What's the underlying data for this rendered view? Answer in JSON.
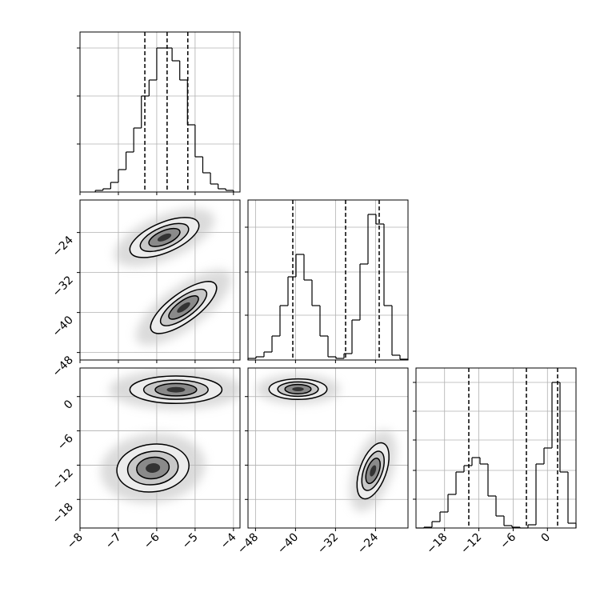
{
  "chart_data": {
    "type": "corner",
    "grid": true,
    "params": [
      {
        "lim": [
          -8,
          -3.83
        ],
        "ticks": [
          {
            "value": -8,
            "label": "−8"
          },
          {
            "value": -7,
            "label": "−7"
          },
          {
            "value": -6,
            "label": "−6"
          },
          {
            "value": -5,
            "label": "−5"
          },
          {
            "value": -4,
            "label": "−4"
          }
        ],
        "hist": {
          "bins": [
            -7.6,
            -7.4,
            -7.2,
            -7.0,
            -6.8,
            -6.6,
            -6.4,
            -6.2,
            -6.0,
            -5.8,
            -5.6,
            -5.4,
            -5.2,
            -5.0,
            -4.8,
            -4.6,
            -4.4,
            -4.2,
            -4.0
          ],
          "counts": [
            0.01,
            0.02,
            0.06,
            0.14,
            0.25,
            0.4,
            0.6,
            0.7,
            0.9,
            0.9,
            0.82,
            0.7,
            0.42,
            0.22,
            0.12,
            0.05,
            0.02,
            0.01
          ],
          "ylim": [
            0,
            1
          ],
          "yticks": [
            0.3,
            0.6,
            0.9
          ],
          "quantiles": [
            -6.31,
            -5.73,
            -5.19
          ]
        }
      },
      {
        "lim": [
          -49.5,
          -17.5
        ],
        "ticks": [
          {
            "value": -48,
            "label": "−48"
          },
          {
            "value": -40,
            "label": "−40"
          },
          {
            "value": -32,
            "label": "−32"
          },
          {
            "value": -24,
            "label": "−24"
          }
        ],
        "hist": {
          "bins": [
            -49.5,
            -47.9,
            -46.3,
            -44.7,
            -43.1,
            -41.5,
            -39.9,
            -38.3,
            -36.7,
            -35.1,
            -33.5,
            -31.9,
            -30.3,
            -28.7,
            -27.1,
            -25.5,
            -23.9,
            -22.3,
            -20.7,
            -19.1,
            -17.5
          ],
          "counts": [
            0.01,
            0.02,
            0.05,
            0.15,
            0.34,
            0.52,
            0.66,
            0.5,
            0.34,
            0.15,
            0.02,
            0.01,
            0.04,
            0.25,
            0.6,
            0.91,
            0.85,
            0.34,
            0.03,
            0.005
          ],
          "ylim": [
            0,
            1
          ],
          "yticks": [
            0.28,
            0.55,
            0.83
          ],
          "quantiles": [
            -40.54,
            -29.98,
            -23.26
          ]
        }
      },
      {
        "lim": [
          -23,
          5
        ],
        "ticks": [
          {
            "value": -18,
            "label": "−18"
          },
          {
            "value": -12,
            "label": "−12"
          },
          {
            "value": -6,
            "label": "−6"
          },
          0
        ],
        "hist": {
          "bins": [
            -23,
            -21.6,
            -20.2,
            -18.8,
            -17.4,
            -16,
            -14.6,
            -13.2,
            -11.8,
            -10.4,
            -9,
            -7.6,
            -6.2,
            -4.8,
            -3.4,
            -2,
            -0.6,
            0.8,
            2.2,
            3.6,
            5
          ],
          "counts": [
            0,
            0.005,
            0.04,
            0.1,
            0.21,
            0.35,
            0.39,
            0.44,
            0.4,
            0.2,
            0.075,
            0.015,
            0.005,
            0,
            0.02,
            0.4,
            0.5,
            0.91,
            0.35,
            0.03
          ],
          "ylim": [
            0,
            1
          ],
          "yticks": [
            0.18,
            0.36,
            0.55,
            0.73,
            0.91
          ],
          "quantiles": [
            -13.76,
            -3.68,
            1.78
          ]
        }
      }
    ],
    "pairs": [
      {
        "blobs": [
          {
            "x": -5.8,
            "y": -25,
            "sx": 0.45,
            "sy": 2.0,
            "rho": 0.6
          },
          {
            "x": -5.3,
            "y": -39,
            "sx": 0.43,
            "sy": 2.6,
            "rho": 0.75
          }
        ]
      },
      {
        "blobs": [
          {
            "x": -5.5,
            "y": 1.2,
            "sx": 0.6,
            "sy": 1.2,
            "rho": 0
          },
          {
            "x": -6.1,
            "y": -12.5,
            "sx": 0.47,
            "sy": 2.1,
            "rho": 0.1
          }
        ]
      },
      {
        "blobs": [
          {
            "x": -39.5,
            "y": 1.3,
            "sx": 2.9,
            "sy": 0.9,
            "rho": 0
          },
          {
            "x": -24.5,
            "y": -13,
            "sx": 1.6,
            "sy": 2.45,
            "rho": 0.5
          }
        ]
      }
    ]
  }
}
